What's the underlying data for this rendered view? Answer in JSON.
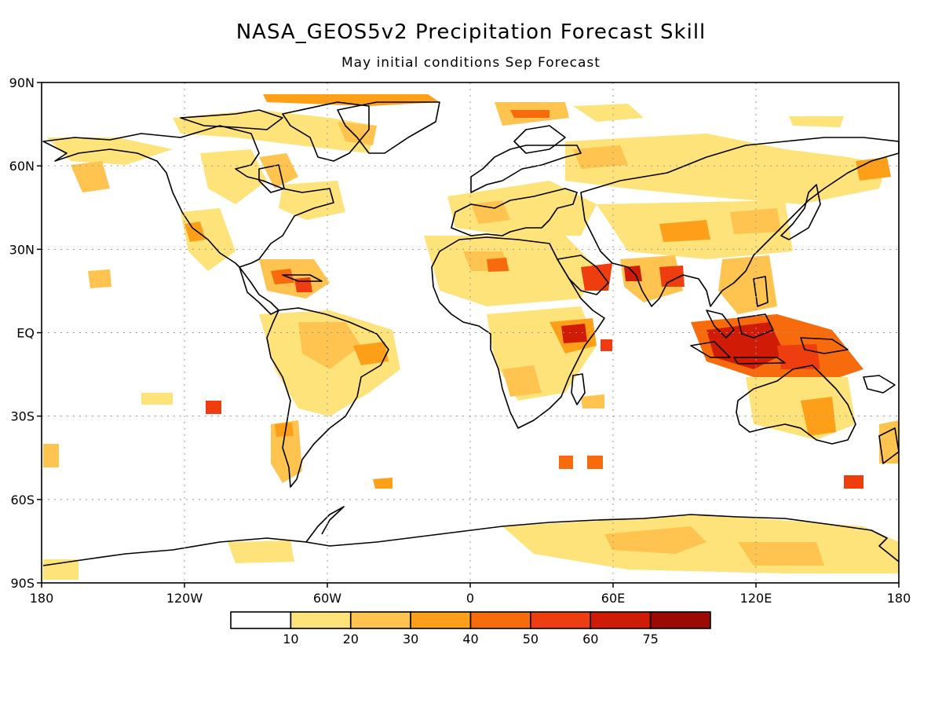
{
  "title": "NASA_GEOS5v2 Precipitation Forecast Skill",
  "subtitle": "May initial conditions   Sep Forecast",
  "map": {
    "lon_range": [
      -180,
      180
    ],
    "lat_range": [
      -90,
      90
    ],
    "grid": true,
    "lat_ticks": [
      {
        "label": "90N",
        "lat": 90
      },
      {
        "label": "60N",
        "lat": 60
      },
      {
        "label": "30N",
        "lat": 30
      },
      {
        "label": "EQ",
        "lat": 0
      },
      {
        "label": "30S",
        "lat": -30
      },
      {
        "label": "60S",
        "lat": -60
      },
      {
        "label": "90S",
        "lat": -90
      }
    ],
    "lon_ticks": [
      {
        "label": "180",
        "lon": -180
      },
      {
        "label": "120W",
        "lon": -120
      },
      {
        "label": "60W",
        "lon": -60
      },
      {
        "label": "0",
        "lon": 0
      },
      {
        "label": "60E",
        "lon": 60
      },
      {
        "label": "120E",
        "lon": 120
      },
      {
        "label": "180",
        "lon": 180
      }
    ]
  },
  "colorbar": {
    "bins": [
      {
        "color": "#ffffff",
        "label": "10"
      },
      {
        "color": "#fee27a",
        "label": "20"
      },
      {
        "color": "#fec44f",
        "label": "30"
      },
      {
        "color": "#fe9f1a",
        "label": "40"
      },
      {
        "color": "#f76b0c",
        "label": "50"
      },
      {
        "color": "#ee3d0f",
        "label": "60"
      },
      {
        "color": "#d01b06",
        "label": "75"
      },
      {
        "color": "#9b0a03",
        "label": ""
      }
    ]
  }
}
